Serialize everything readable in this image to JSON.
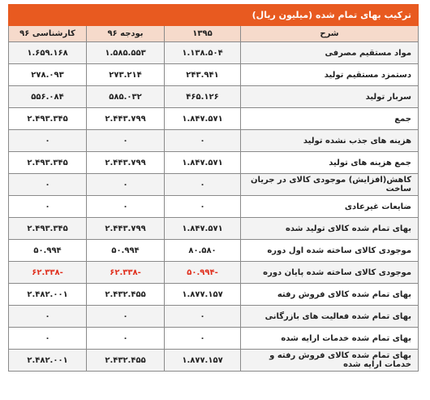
{
  "table": {
    "title": "ترکیب بهای تمام شده (میلیون ریال)",
    "headers": [
      "شرح",
      "۱۳۹۵",
      "بودجه ۹۶",
      "کارشناسی ۹۶"
    ],
    "rows": [
      {
        "desc": "مواد مستقیم مصرفی",
        "y1395": "۱.۱۳۸.۵۰۴",
        "budget96": "۱.۵۸۵.۵۵۳",
        "expert96": "۱.۶۵۹.۱۶۸"
      },
      {
        "desc": "دستمزد مستقیم تولید",
        "y1395": "۲۴۳.۹۴۱",
        "budget96": "۲۷۳.۲۱۴",
        "expert96": "۲۷۸.۰۹۳"
      },
      {
        "desc": "سربار تولید",
        "y1395": "۴۶۵.۱۲۶",
        "budget96": "۵۸۵.۰۳۲",
        "expert96": "۵۵۶.۰۸۴"
      },
      {
        "desc": "جمع",
        "y1395": "۱.۸۴۷.۵۷۱",
        "budget96": "۲.۴۴۳.۷۹۹",
        "expert96": "۲.۴۹۳.۳۴۵"
      },
      {
        "desc": "هزینه های جذب نشده تولید",
        "y1395": "۰",
        "budget96": "۰",
        "expert96": "۰"
      },
      {
        "desc": "جمع هزینه های تولید",
        "y1395": "۱.۸۴۷.۵۷۱",
        "budget96": "۲.۴۴۳.۷۹۹",
        "expert96": "۲.۴۹۳.۳۴۵"
      },
      {
        "desc": "کاهش(افزایش) موجودی کالای در جریان ساخت",
        "y1395": "۰",
        "budget96": "۰",
        "expert96": "۰"
      },
      {
        "desc": "ضایعات غیرعادی",
        "y1395": "۰",
        "budget96": "۰",
        "expert96": "۰"
      },
      {
        "desc": "بهای تمام شده کالای تولید شده",
        "y1395": "۱.۸۴۷.۵۷۱",
        "budget96": "۲.۴۴۳.۷۹۹",
        "expert96": "۲.۴۹۳.۳۴۵"
      },
      {
        "desc": "موجودی کالای ساخته شده اول دوره",
        "y1395": "۸۰.۵۸۰",
        "budget96": "۵۰.۹۹۴",
        "expert96": "۵۰.۹۹۴"
      },
      {
        "desc": "موجودی کالای ساخته شده پایان دوره",
        "y1395": "-۵۰.۹۹۴",
        "budget96": "-۶۲.۳۳۸",
        "expert96": "-۶۲.۳۳۸"
      },
      {
        "desc": "بهای تمام شده کالای فروش رفته",
        "y1395": "۱.۸۷۷.۱۵۷",
        "budget96": "۲.۴۳۲.۴۵۵",
        "expert96": "۲.۴۸۲.۰۰۱"
      },
      {
        "desc": "بهای تمام شده فعالیت های بازرگانی",
        "y1395": "۰",
        "budget96": "۰",
        "expert96": "۰"
      },
      {
        "desc": "بهای تمام شده خدمات ارایه شده",
        "y1395": "۰",
        "budget96": "۰",
        "expert96": "۰"
      },
      {
        "desc": "بهای تمام شده کالای فروش رفته و خدمات ارایه شده",
        "y1395": "۱.۸۷۷.۱۵۷",
        "budget96": "۲.۴۳۲.۴۵۵",
        "expert96": "۲.۴۸۲.۰۰۱"
      }
    ]
  },
  "colors": {
    "title_bg": "#e85a20",
    "header_bg": "#f6dacb",
    "negative_text": "#e0301e"
  }
}
